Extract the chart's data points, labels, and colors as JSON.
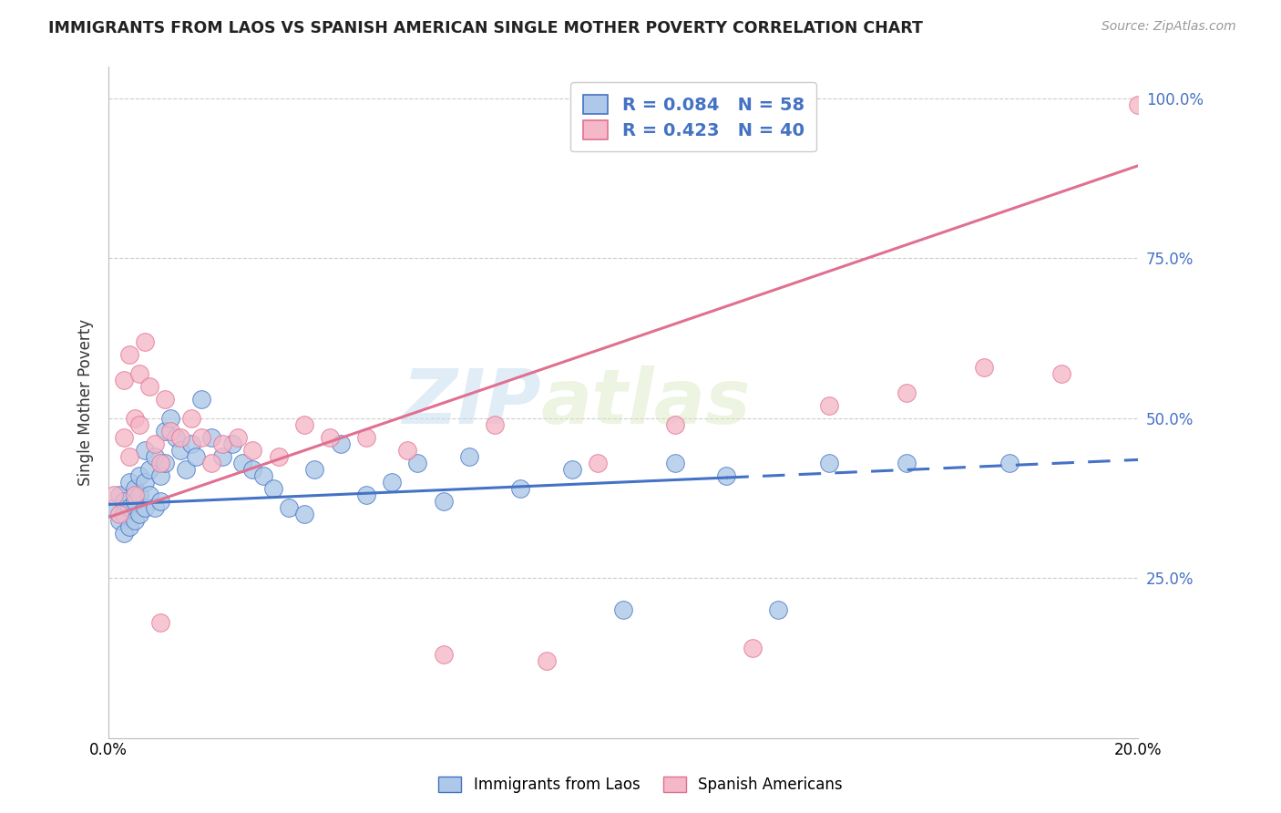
{
  "title": "IMMIGRANTS FROM LAOS VS SPANISH AMERICAN SINGLE MOTHER POVERTY CORRELATION CHART",
  "source": "Source: ZipAtlas.com",
  "ylabel": "Single Mother Poverty",
  "legend_label1": "Immigrants from Laos",
  "legend_label2": "Spanish Americans",
  "r1": 0.084,
  "n1": 58,
  "r2": 0.423,
  "n2": 40,
  "xmin": 0.0,
  "xmax": 0.2,
  "ymin": 0.0,
  "ymax": 1.05,
  "yticks": [
    0.25,
    0.5,
    0.75,
    1.0
  ],
  "ytick_labels": [
    "25.0%",
    "50.0%",
    "75.0%",
    "100.0%"
  ],
  "xticks": [
    0.0,
    0.2
  ],
  "xtick_labels": [
    "0.0%",
    "20.0%"
  ],
  "color1": "#adc8e8",
  "color2": "#f5b8c8",
  "line_color1": "#4472c4",
  "line_color2": "#e07090",
  "watermark_zip": "ZIP",
  "watermark_atlas": "atlas",
  "blue_scatter_x": [
    0.001,
    0.002,
    0.002,
    0.003,
    0.003,
    0.003,
    0.004,
    0.004,
    0.004,
    0.005,
    0.005,
    0.005,
    0.006,
    0.006,
    0.006,
    0.007,
    0.007,
    0.007,
    0.008,
    0.008,
    0.009,
    0.009,
    0.01,
    0.01,
    0.011,
    0.011,
    0.012,
    0.013,
    0.014,
    0.015,
    0.016,
    0.017,
    0.018,
    0.02,
    0.022,
    0.024,
    0.026,
    0.028,
    0.03,
    0.032,
    0.035,
    0.038,
    0.04,
    0.045,
    0.05,
    0.055,
    0.06,
    0.065,
    0.07,
    0.08,
    0.09,
    0.1,
    0.11,
    0.12,
    0.13,
    0.14,
    0.155,
    0.175
  ],
  "blue_scatter_y": [
    0.36,
    0.38,
    0.34,
    0.35,
    0.37,
    0.32,
    0.33,
    0.36,
    0.4,
    0.37,
    0.34,
    0.39,
    0.35,
    0.38,
    0.41,
    0.36,
    0.4,
    0.45,
    0.38,
    0.42,
    0.36,
    0.44,
    0.37,
    0.41,
    0.43,
    0.48,
    0.5,
    0.47,
    0.45,
    0.42,
    0.46,
    0.44,
    0.53,
    0.47,
    0.44,
    0.46,
    0.43,
    0.42,
    0.41,
    0.39,
    0.36,
    0.35,
    0.42,
    0.46,
    0.38,
    0.4,
    0.43,
    0.37,
    0.44,
    0.39,
    0.42,
    0.2,
    0.43,
    0.41,
    0.2,
    0.43,
    0.43,
    0.43
  ],
  "pink_scatter_x": [
    0.001,
    0.002,
    0.003,
    0.003,
    0.004,
    0.004,
    0.005,
    0.005,
    0.006,
    0.006,
    0.007,
    0.008,
    0.009,
    0.01,
    0.011,
    0.012,
    0.014,
    0.016,
    0.018,
    0.02,
    0.022,
    0.025,
    0.028,
    0.033,
    0.038,
    0.043,
    0.05,
    0.058,
    0.065,
    0.075,
    0.085,
    0.095,
    0.11,
    0.125,
    0.14,
    0.155,
    0.17,
    0.185,
    0.2,
    0.01
  ],
  "pink_scatter_y": [
    0.38,
    0.35,
    0.47,
    0.56,
    0.44,
    0.6,
    0.5,
    0.38,
    0.49,
    0.57,
    0.62,
    0.55,
    0.46,
    0.43,
    0.53,
    0.48,
    0.47,
    0.5,
    0.47,
    0.43,
    0.46,
    0.47,
    0.45,
    0.44,
    0.49,
    0.47,
    0.47,
    0.45,
    0.13,
    0.49,
    0.12,
    0.43,
    0.49,
    0.14,
    0.52,
    0.54,
    0.58,
    0.57,
    0.99,
    0.18
  ],
  "blue_line_x0": 0.0,
  "blue_line_x_solid_end": 0.12,
  "blue_line_xmax": 0.2,
  "blue_line_y0": 0.365,
  "blue_line_ymax": 0.435,
  "pink_line_x0": 0.0,
  "pink_line_xmax": 0.2,
  "pink_line_y0": 0.345,
  "pink_line_ymax": 0.895
}
